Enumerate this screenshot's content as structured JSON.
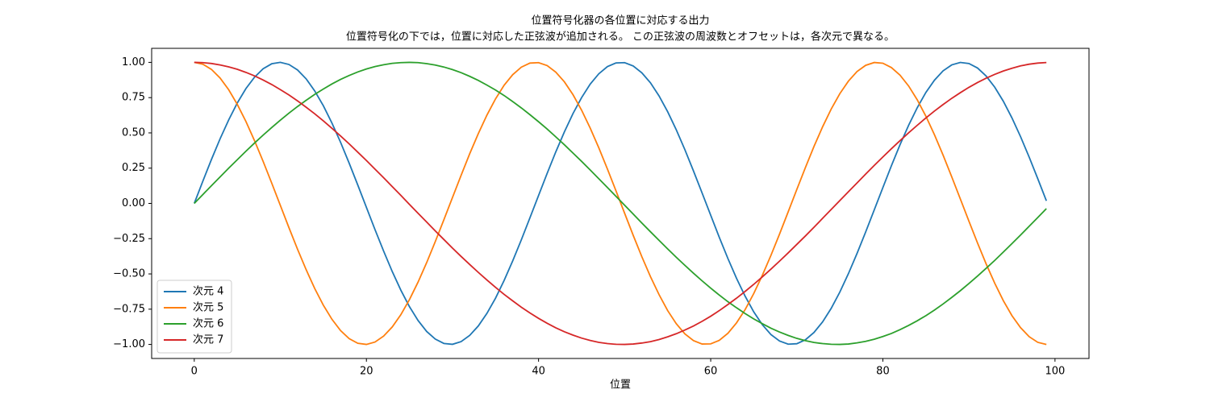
{
  "chart_data": {
    "type": "line",
    "title": "位置符号化器の各位置に対応する出力",
    "subtitle": "位置符号化の下では，位置に対応した正弦波が追加される。 この正弦波の周波数とオフセットは，各次元で異なる。",
    "x_label": "位置",
    "x": [
      0,
      1,
      2,
      3,
      4,
      5,
      6,
      7,
      8,
      9,
      10,
      11,
      12,
      13,
      14,
      15,
      16,
      17,
      18,
      19,
      20,
      21,
      22,
      23,
      24,
      25,
      26,
      27,
      28,
      29,
      30,
      31,
      32,
      33,
      34,
      35,
      36,
      37,
      38,
      39,
      40,
      41,
      42,
      43,
      44,
      45,
      46,
      47,
      48,
      49,
      50,
      51,
      52,
      53,
      54,
      55,
      56,
      57,
      58,
      59,
      60,
      61,
      62,
      63,
      64,
      65,
      66,
      67,
      68,
      69,
      70,
      71,
      72,
      73,
      74,
      75,
      76,
      77,
      78,
      79,
      80,
      81,
      82,
      83,
      84,
      85,
      86,
      87,
      88,
      89,
      90,
      91,
      92,
      93,
      94,
      95,
      96,
      97,
      98,
      99
    ],
    "series": [
      {
        "name": "次元 4",
        "color": "#1f77b4",
        "values": [
          0,
          0.158,
          0.312,
          0.458,
          0.592,
          0.712,
          0.814,
          0.895,
          0.955,
          0.99,
          1.0,
          0.985,
          0.946,
          0.883,
          0.797,
          0.692,
          0.569,
          0.433,
          0.285,
          0.13,
          -0.028,
          -0.186,
          -0.338,
          -0.483,
          -0.615,
          -0.732,
          -0.83,
          -0.908,
          -0.962,
          -0.993,
          -0.999,
          -0.98,
          -0.936,
          -0.869,
          -0.78,
          -0.672,
          -0.546,
          -0.407,
          -0.258,
          -0.102,
          0.056,
          0.213,
          0.365,
          0.507,
          0.637,
          0.75,
          0.846,
          0.919,
          0.97,
          0.996,
          0.998,
          0.974,
          0.926,
          0.855,
          0.762,
          0.65,
          0.522,
          0.381,
          0.23,
          0.074,
          -0.084,
          -0.241,
          -0.391,
          -0.531,
          -0.658,
          -0.769,
          -0.86,
          -0.93,
          -0.976,
          -0.998,
          -0.995,
          -0.967,
          -0.915,
          -0.84,
          -0.744,
          -0.629,
          -0.498,
          -0.355,
          -0.203,
          -0.046,
          0.112,
          0.268,
          0.417,
          0.555,
          0.679,
          0.787,
          0.874,
          0.94,
          0.982,
          0.9995,
          0.992,
          0.96,
          0.903,
          0.824,
          0.724,
          0.606,
          0.473,
          0.328,
          0.175,
          0.018
        ]
      },
      {
        "name": "次元 5",
        "color": "#ff7f0e",
        "values": [
          1,
          0.987,
          0.95,
          0.889,
          0.806,
          0.702,
          0.581,
          0.445,
          0.298,
          0.144,
          -0.014,
          -0.172,
          -0.325,
          -0.47,
          -0.604,
          -0.722,
          -0.822,
          -0.902,
          -0.959,
          -0.992,
          -1.0,
          -0.983,
          -0.941,
          -0.876,
          -0.789,
          -0.682,
          -0.558,
          -0.42,
          -0.271,
          -0.116,
          0.042,
          0.199,
          0.352,
          0.495,
          0.626,
          0.741,
          0.838,
          0.913,
          0.966,
          0.995,
          0.998,
          0.977,
          0.931,
          0.862,
          0.771,
          0.661,
          0.534,
          0.394,
          0.244,
          0.088,
          -0.07,
          -0.227,
          -0.378,
          -0.519,
          -0.647,
          -0.76,
          -0.853,
          -0.925,
          -0.973,
          -0.997,
          -0.996,
          -0.971,
          -0.921,
          -0.847,
          -0.753,
          -0.639,
          -0.51,
          -0.368,
          -0.217,
          -0.06,
          0.098,
          0.254,
          0.404,
          0.543,
          0.669,
          0.778,
          0.867,
          0.935,
          0.979,
          0.999,
          0.994,
          0.963,
          0.909,
          0.832,
          0.734,
          0.618,
          0.486,
          0.342,
          0.189,
          0.032,
          -0.126,
          -0.281,
          -0.429,
          -0.566,
          -0.69,
          -0.796,
          -0.881,
          -0.945,
          -0.985,
          -1.0
        ]
      },
      {
        "name": "次元 6",
        "color": "#2ca02c",
        "values": [
          0,
          0.063,
          0.126,
          0.188,
          0.25,
          0.31,
          0.37,
          0.428,
          0.484,
          0.538,
          0.59,
          0.64,
          0.687,
          0.731,
          0.773,
          0.811,
          0.847,
          0.879,
          0.907,
          0.932,
          0.953,
          0.97,
          0.983,
          0.993,
          0.998,
          1.0,
          0.998,
          0.991,
          0.981,
          0.967,
          0.949,
          0.927,
          0.901,
          0.872,
          0.839,
          0.804,
          0.765,
          0.722,
          0.677,
          0.629,
          0.579,
          0.527,
          0.472,
          0.416,
          0.357,
          0.298,
          0.237,
          0.175,
          0.113,
          0.05,
          -0.013,
          -0.076,
          -0.139,
          -0.201,
          -0.262,
          -0.323,
          -0.382,
          -0.439,
          -0.495,
          -0.549,
          -0.601,
          -0.65,
          -0.697,
          -0.74,
          -0.781,
          -0.819,
          -0.853,
          -0.885,
          -0.912,
          -0.936,
          -0.957,
          -0.973,
          -0.986,
          -0.994,
          -0.999,
          -1.0,
          -0.997,
          -0.989,
          -0.978,
          -0.963,
          -0.944,
          -0.922,
          -0.895,
          -0.865,
          -0.832,
          -0.796,
          -0.756,
          -0.713,
          -0.667,
          -0.619,
          -0.568,
          -0.515,
          -0.46,
          -0.404,
          -0.345,
          -0.285,
          -0.224,
          -0.162,
          -0.1,
          -0.037
        ]
      },
      {
        "name": "次元 7",
        "color": "#d62728",
        "values": [
          1,
          0.998,
          0.992,
          0.982,
          0.968,
          0.951,
          0.929,
          0.904,
          0.875,
          0.843,
          0.807,
          0.769,
          0.727,
          0.682,
          0.635,
          0.585,
          0.532,
          0.478,
          0.422,
          0.363,
          0.304,
          0.243,
          0.182,
          0.119,
          0.057,
          -0.007,
          -0.07,
          -0.132,
          -0.195,
          -0.256,
          -0.317,
          -0.376,
          -0.433,
          -0.489,
          -0.543,
          -0.595,
          -0.645,
          -0.691,
          -0.736,
          -0.777,
          -0.815,
          -0.85,
          -0.882,
          -0.91,
          -0.934,
          -0.955,
          -0.972,
          -0.985,
          -0.994,
          -0.999,
          -1.0,
          -0.997,
          -0.99,
          -0.98,
          -0.965,
          -0.946,
          -0.924,
          -0.898,
          -0.869,
          -0.836,
          -0.8,
          -0.76,
          -0.717,
          -0.672,
          -0.624,
          -0.574,
          -0.521,
          -0.466,
          -0.409,
          -0.351,
          -0.291,
          -0.231,
          -0.169,
          -0.106,
          -0.043,
          0.02,
          0.083,
          0.145,
          0.208,
          0.269,
          0.329,
          0.388,
          0.445,
          0.501,
          0.554,
          0.606,
          0.655,
          0.701,
          0.745,
          0.785,
          0.823,
          0.857,
          0.888,
          0.915,
          0.939,
          0.958,
          0.975,
          0.987,
          0.995,
          0.999
        ]
      }
    ],
    "xlim": [
      -4.95,
      103.95
    ],
    "ylim": [
      -1.0995,
      1.0995
    ],
    "xticks": [
      0,
      20,
      40,
      60,
      80,
      100
    ],
    "yticks": [
      {
        "value": -1,
        "label": "−1.00"
      },
      {
        "value": -0.75,
        "label": "−0.75"
      },
      {
        "value": -0.5,
        "label": "−0.50"
      },
      {
        "value": -0.25,
        "label": "−0.25"
      },
      {
        "value": 0,
        "label": "0.00"
      },
      {
        "value": 0.25,
        "label": "0.25"
      },
      {
        "value": 0.5,
        "label": "0.50"
      },
      {
        "value": 0.75,
        "label": "0.75"
      },
      {
        "value": 1,
        "label": "1.00"
      }
    ],
    "legend": "lower left"
  }
}
